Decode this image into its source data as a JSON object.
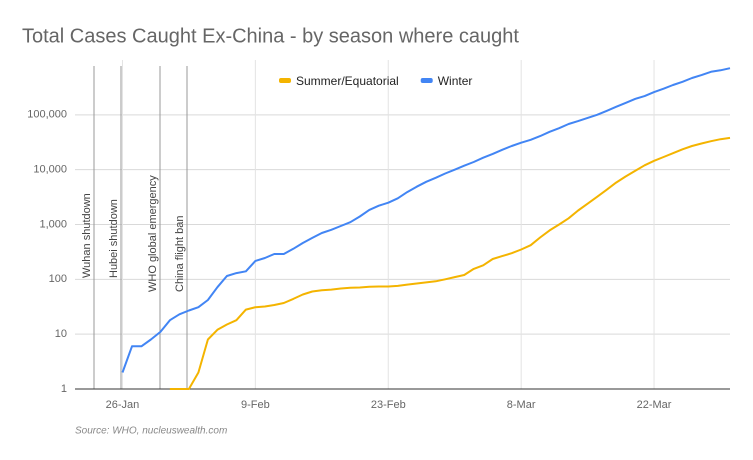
{
  "chart_data": {
    "type": "line",
    "title": "Total Cases Caught Ex-China - by season where caught",
    "source": "Source: WHO, nucleuswealth.com",
    "log_scale": true,
    "grid": true,
    "legend": "top",
    "categories": [
      null,
      null,
      null,
      null,
      null,
      "26-Jan",
      null,
      null,
      null,
      null,
      null,
      null,
      null,
      null,
      null,
      null,
      null,
      null,
      null,
      "9-Feb",
      null,
      null,
      null,
      null,
      null,
      null,
      null,
      null,
      null,
      null,
      null,
      null,
      null,
      "23-Feb",
      null,
      null,
      null,
      null,
      null,
      null,
      null,
      null,
      null,
      null,
      null,
      null,
      null,
      "8-Mar",
      null,
      null,
      null,
      null,
      null,
      null,
      null,
      null,
      null,
      null,
      null,
      null,
      null,
      "22-Mar",
      null,
      null,
      null,
      null,
      null,
      null,
      null,
      null
    ],
    "ylim": [
      1,
      1000000
    ],
    "yticks": [
      1,
      10,
      100,
      {
        "value": 1000,
        "label": "1,000"
      },
      {
        "value": 10000,
        "label": "10,000"
      },
      {
        "value": 100000,
        "label": "100,000"
      }
    ],
    "annotations": [
      "Wuhan shutdown",
      "Hubei shutdown",
      "WHO global emergency",
      "China flight ban"
    ],
    "series": [
      {
        "name": "Summer/Equatorial",
        "color": "#f4b400",
        "values": [
          null,
          null,
          null,
          null,
          null,
          null,
          null,
          null,
          null,
          null,
          1,
          1,
          1,
          2,
          8,
          12,
          15,
          18,
          28,
          31,
          32,
          34,
          37,
          44,
          53,
          60,
          63,
          65,
          68,
          70,
          71,
          73,
          74,
          74,
          76,
          80,
          84,
          88,
          92,
          100,
          110,
          120,
          155,
          180,
          235,
          265,
          300,
          350,
          420,
          580,
          780,
          1000,
          1300,
          1800,
          2400,
          3200,
          4300,
          5800,
          7500,
          9500,
          12000,
          14500,
          17000,
          20000,
          23500,
          27000,
          30000,
          33000,
          36000,
          38000
        ]
      },
      {
        "name": "Winter",
        "color": "#4285f4",
        "values": [
          null,
          null,
          null,
          null,
          null,
          2,
          6,
          6,
          8,
          11,
          18,
          23,
          27,
          31,
          42,
          72,
          115,
          130,
          140,
          217,
          245,
          290,
          290,
          360,
          460,
          570,
          700,
          800,
          940,
          1100,
          1400,
          1850,
          2200,
          2500,
          3000,
          3900,
          4900,
          6000,
          7100,
          8500,
          10000,
          11800,
          13800,
          16500,
          19400,
          23000,
          27000,
          31000,
          35000,
          41000,
          49000,
          57000,
          68000,
          77000,
          88000,
          100000,
          118000,
          140000,
          165000,
          195000,
          220000,
          260000,
          300000,
          350000,
          400000,
          470000,
          530000,
          610000,
          650000,
          710000
        ]
      }
    ]
  }
}
